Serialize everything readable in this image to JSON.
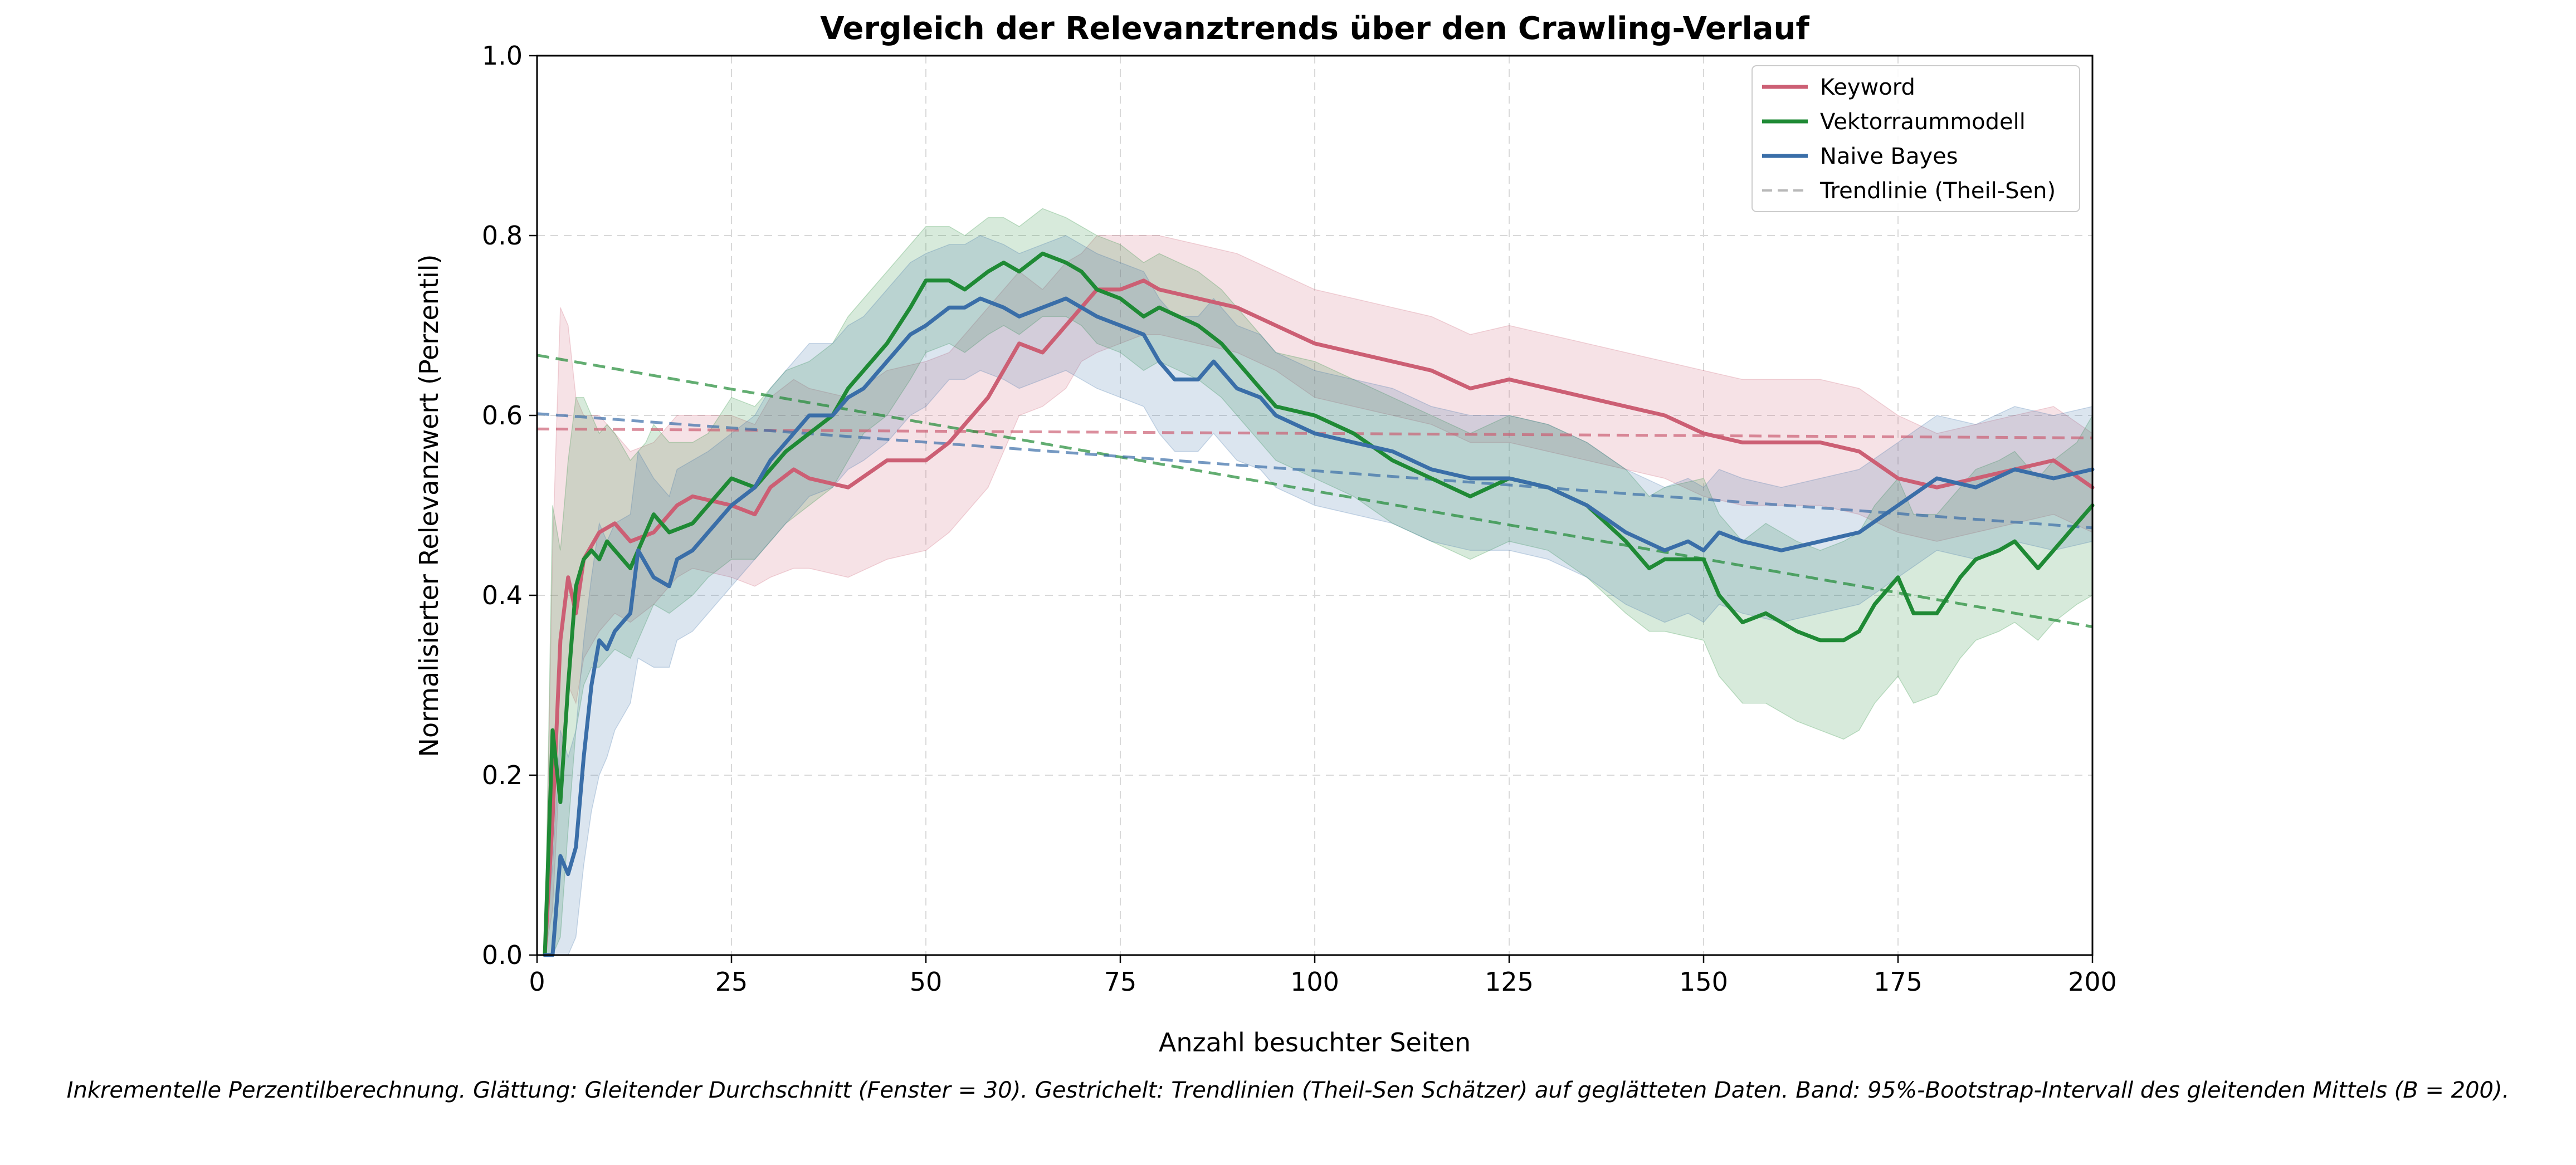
{
  "chart_data": {
    "type": "line",
    "title": "Vergleich der Relevanztrends über den Crawling-Verlauf",
    "xlabel": "Anzahl besuchter Seiten",
    "ylabel": "Normalisierter Relevanzwert (Perzentil)",
    "xlim": [
      0,
      200
    ],
    "ylim": [
      0.0,
      1.0
    ],
    "xticks": [
      "0",
      "25",
      "50",
      "75",
      "100",
      "125",
      "150",
      "175",
      "200"
    ],
    "yticks": [
      "0.0",
      "0.2",
      "0.4",
      "0.6",
      "0.8",
      "1.0"
    ],
    "grid": true,
    "legend_position": "top-right",
    "series": [
      {
        "name": "Keyword",
        "color": "#cc5f74",
        "x": [
          1,
          2,
          3,
          4,
          5,
          6,
          8,
          10,
          12,
          15,
          18,
          20,
          25,
          28,
          30,
          33,
          35,
          40,
          45,
          50,
          53,
          55,
          58,
          60,
          62,
          65,
          68,
          70,
          72,
          75,
          78,
          80,
          85,
          90,
          95,
          100,
          105,
          110,
          115,
          120,
          125,
          130,
          135,
          140,
          145,
          150,
          155,
          160,
          165,
          170,
          175,
          180,
          185,
          190,
          195,
          200
        ],
        "values": [
          0.0,
          0.15,
          0.35,
          0.42,
          0.38,
          0.44,
          0.47,
          0.48,
          0.46,
          0.47,
          0.5,
          0.51,
          0.5,
          0.49,
          0.52,
          0.54,
          0.53,
          0.52,
          0.55,
          0.55,
          0.57,
          0.59,
          0.62,
          0.65,
          0.68,
          0.67,
          0.7,
          0.72,
          0.74,
          0.74,
          0.75,
          0.74,
          0.73,
          0.72,
          0.7,
          0.68,
          0.67,
          0.66,
          0.65,
          0.63,
          0.64,
          0.63,
          0.62,
          0.61,
          0.6,
          0.58,
          0.57,
          0.57,
          0.57,
          0.56,
          0.53,
          0.52,
          0.53,
          0.54,
          0.55,
          0.52
        ],
        "ci_lower": [
          0.0,
          0.05,
          0.22,
          0.3,
          0.28,
          0.33,
          0.36,
          0.38,
          0.37,
          0.39,
          0.42,
          0.43,
          0.42,
          0.41,
          0.42,
          0.43,
          0.43,
          0.42,
          0.44,
          0.45,
          0.47,
          0.49,
          0.52,
          0.56,
          0.6,
          0.61,
          0.63,
          0.66,
          0.67,
          0.68,
          0.69,
          0.69,
          0.68,
          0.67,
          0.65,
          0.62,
          0.61,
          0.6,
          0.59,
          0.57,
          0.57,
          0.56,
          0.55,
          0.54,
          0.53,
          0.51,
          0.5,
          0.5,
          0.5,
          0.49,
          0.47,
          0.46,
          0.47,
          0.48,
          0.49,
          0.47
        ],
        "ci_upper": [
          0.0,
          0.45,
          0.72,
          0.7,
          0.62,
          0.6,
          0.6,
          0.58,
          0.56,
          0.57,
          0.6,
          0.6,
          0.6,
          0.59,
          0.62,
          0.64,
          0.63,
          0.62,
          0.65,
          0.66,
          0.67,
          0.69,
          0.72,
          0.74,
          0.76,
          0.74,
          0.77,
          0.78,
          0.8,
          0.8,
          0.8,
          0.8,
          0.79,
          0.78,
          0.76,
          0.74,
          0.73,
          0.72,
          0.71,
          0.69,
          0.7,
          0.69,
          0.68,
          0.67,
          0.66,
          0.65,
          0.64,
          0.64,
          0.64,
          0.63,
          0.6,
          0.58,
          0.59,
          0.6,
          0.61,
          0.58
        ]
      },
      {
        "name": "Vektorraummodell",
        "color": "#1f8a35",
        "x": [
          1,
          2,
          3,
          4,
          5,
          6,
          7,
          8,
          9,
          10,
          12,
          14,
          15,
          17,
          20,
          22,
          25,
          28,
          30,
          32,
          35,
          38,
          40,
          42,
          45,
          48,
          50,
          53,
          55,
          58,
          60,
          62,
          65,
          68,
          70,
          72,
          75,
          78,
          80,
          85,
          88,
          90,
          92,
          95,
          100,
          105,
          110,
          115,
          120,
          125,
          130,
          135,
          140,
          143,
          145,
          150,
          152,
          155,
          158,
          160,
          162,
          165,
          168,
          170,
          172,
          175,
          177,
          180,
          183,
          185,
          188,
          190,
          193,
          195,
          198,
          200
        ],
        "values": [
          0.0,
          0.25,
          0.17,
          0.3,
          0.41,
          0.44,
          0.45,
          0.44,
          0.46,
          0.45,
          0.43,
          0.47,
          0.49,
          0.47,
          0.48,
          0.5,
          0.53,
          0.52,
          0.54,
          0.56,
          0.58,
          0.6,
          0.63,
          0.65,
          0.68,
          0.72,
          0.75,
          0.75,
          0.74,
          0.76,
          0.77,
          0.76,
          0.78,
          0.77,
          0.76,
          0.74,
          0.73,
          0.71,
          0.72,
          0.7,
          0.68,
          0.66,
          0.64,
          0.61,
          0.6,
          0.58,
          0.55,
          0.53,
          0.51,
          0.53,
          0.52,
          0.5,
          0.46,
          0.43,
          0.44,
          0.44,
          0.4,
          0.37,
          0.38,
          0.37,
          0.36,
          0.35,
          0.35,
          0.36,
          0.39,
          0.42,
          0.38,
          0.38,
          0.42,
          0.44,
          0.45,
          0.46,
          0.43,
          0.45,
          0.48,
          0.5
        ],
        "ci_lower": [
          0.0,
          0.0,
          0.02,
          0.14,
          0.25,
          0.3,
          0.32,
          0.32,
          0.33,
          0.34,
          0.33,
          0.37,
          0.39,
          0.38,
          0.4,
          0.42,
          0.44,
          0.44,
          0.46,
          0.48,
          0.5,
          0.52,
          0.55,
          0.58,
          0.6,
          0.64,
          0.67,
          0.68,
          0.67,
          0.69,
          0.7,
          0.69,
          0.71,
          0.71,
          0.7,
          0.68,
          0.67,
          0.65,
          0.66,
          0.64,
          0.62,
          0.6,
          0.58,
          0.55,
          0.53,
          0.51,
          0.48,
          0.46,
          0.44,
          0.46,
          0.45,
          0.42,
          0.38,
          0.36,
          0.36,
          0.35,
          0.31,
          0.28,
          0.28,
          0.27,
          0.26,
          0.25,
          0.24,
          0.25,
          0.28,
          0.31,
          0.28,
          0.29,
          0.33,
          0.35,
          0.36,
          0.37,
          0.35,
          0.37,
          0.39,
          0.4
        ],
        "ci_upper": [
          0.0,
          0.5,
          0.45,
          0.55,
          0.62,
          0.62,
          0.6,
          0.58,
          0.59,
          0.58,
          0.55,
          0.57,
          0.59,
          0.57,
          0.57,
          0.58,
          0.62,
          0.61,
          0.63,
          0.65,
          0.66,
          0.68,
          0.71,
          0.73,
          0.76,
          0.79,
          0.81,
          0.81,
          0.8,
          0.82,
          0.82,
          0.81,
          0.83,
          0.82,
          0.81,
          0.8,
          0.79,
          0.77,
          0.78,
          0.76,
          0.74,
          0.72,
          0.7,
          0.67,
          0.66,
          0.64,
          0.62,
          0.6,
          0.58,
          0.6,
          0.59,
          0.57,
          0.54,
          0.51,
          0.52,
          0.53,
          0.49,
          0.46,
          0.48,
          0.47,
          0.46,
          0.45,
          0.46,
          0.47,
          0.5,
          0.53,
          0.49,
          0.49,
          0.52,
          0.54,
          0.55,
          0.56,
          0.53,
          0.55,
          0.57,
          0.6
        ]
      },
      {
        "name": "Naive Bayes",
        "color": "#3a6ea8",
        "x": [
          1,
          2,
          3,
          4,
          5,
          6,
          7,
          8,
          9,
          10,
          12,
          13,
          15,
          17,
          18,
          20,
          22,
          25,
          28,
          30,
          32,
          35,
          38,
          40,
          42,
          45,
          48,
          50,
          53,
          55,
          57,
          60,
          62,
          65,
          68,
          70,
          72,
          75,
          78,
          80,
          82,
          85,
          87,
          90,
          93,
          95,
          100,
          105,
          110,
          115,
          120,
          125,
          130,
          135,
          140,
          145,
          148,
          150,
          152,
          155,
          160,
          165,
          170,
          175,
          180,
          185,
          190,
          195,
          200
        ],
        "values": [
          0.0,
          0.0,
          0.11,
          0.09,
          0.12,
          0.22,
          0.3,
          0.35,
          0.34,
          0.36,
          0.38,
          0.45,
          0.42,
          0.41,
          0.44,
          0.45,
          0.47,
          0.5,
          0.52,
          0.55,
          0.57,
          0.6,
          0.6,
          0.62,
          0.63,
          0.66,
          0.69,
          0.7,
          0.72,
          0.72,
          0.73,
          0.72,
          0.71,
          0.72,
          0.73,
          0.72,
          0.71,
          0.7,
          0.69,
          0.66,
          0.64,
          0.64,
          0.66,
          0.63,
          0.62,
          0.6,
          0.58,
          0.57,
          0.56,
          0.54,
          0.53,
          0.53,
          0.52,
          0.5,
          0.47,
          0.45,
          0.46,
          0.45,
          0.47,
          0.46,
          0.45,
          0.46,
          0.47,
          0.5,
          0.53,
          0.52,
          0.54,
          0.53,
          0.54
        ],
        "ci_lower": [
          0.0,
          0.0,
          0.0,
          0.0,
          0.02,
          0.1,
          0.16,
          0.2,
          0.22,
          0.25,
          0.28,
          0.33,
          0.32,
          0.32,
          0.35,
          0.36,
          0.38,
          0.41,
          0.44,
          0.46,
          0.48,
          0.51,
          0.52,
          0.54,
          0.55,
          0.57,
          0.6,
          0.61,
          0.64,
          0.64,
          0.65,
          0.64,
          0.63,
          0.64,
          0.65,
          0.64,
          0.63,
          0.62,
          0.61,
          0.58,
          0.56,
          0.56,
          0.58,
          0.55,
          0.54,
          0.52,
          0.5,
          0.49,
          0.48,
          0.46,
          0.45,
          0.45,
          0.44,
          0.42,
          0.39,
          0.37,
          0.38,
          0.37,
          0.39,
          0.38,
          0.37,
          0.38,
          0.39,
          0.42,
          0.45,
          0.44,
          0.46,
          0.45,
          0.46
        ],
        "ci_upper": [
          0.0,
          0.1,
          0.25,
          0.22,
          0.25,
          0.35,
          0.42,
          0.48,
          0.46,
          0.48,
          0.49,
          0.56,
          0.53,
          0.51,
          0.54,
          0.55,
          0.56,
          0.58,
          0.6,
          0.63,
          0.65,
          0.68,
          0.68,
          0.7,
          0.71,
          0.74,
          0.77,
          0.78,
          0.79,
          0.79,
          0.8,
          0.79,
          0.78,
          0.79,
          0.8,
          0.79,
          0.78,
          0.77,
          0.76,
          0.73,
          0.71,
          0.71,
          0.73,
          0.7,
          0.69,
          0.67,
          0.65,
          0.64,
          0.63,
          0.61,
          0.6,
          0.6,
          0.59,
          0.57,
          0.54,
          0.52,
          0.53,
          0.52,
          0.54,
          0.53,
          0.52,
          0.53,
          0.54,
          0.57,
          0.6,
          0.59,
          0.61,
          0.6,
          0.61
        ]
      }
    ],
    "trendlines": [
      {
        "series": "Keyword",
        "color": "#cc5f74",
        "x": [
          0,
          200
        ],
        "values": [
          0.585,
          0.575
        ]
      },
      {
        "series": "Vektorraummodell",
        "color": "#1f8a35",
        "x": [
          0,
          200
        ],
        "values": [
          0.667,
          0.365
        ]
      },
      {
        "series": "Naive Bayes",
        "color": "#3a6ea8",
        "x": [
          0,
          200
        ],
        "values": [
          0.602,
          0.475
        ]
      }
    ],
    "legend": [
      {
        "label": "Keyword",
        "color": "#cc5f74",
        "style": "solid"
      },
      {
        "label": "Vektorraummodell",
        "color": "#1f8a35",
        "style": "solid"
      },
      {
        "label": "Naive Bayes",
        "color": "#3a6ea8",
        "style": "solid"
      },
      {
        "label": "Trendlinie (Theil-Sen)",
        "color": "#b8b8b8",
        "style": "dashed"
      }
    ]
  },
  "caption": "Inkrementelle Perzentilberechnung. Glättung: Gleitender Durchschnitt (Fenster = 30). Gestrichelt: Trendlinien (Theil-Sen Schätzer) auf geglätteten Daten. Band: 95%-Bootstrap-Intervall des gleitenden Mittels (B = 200)."
}
